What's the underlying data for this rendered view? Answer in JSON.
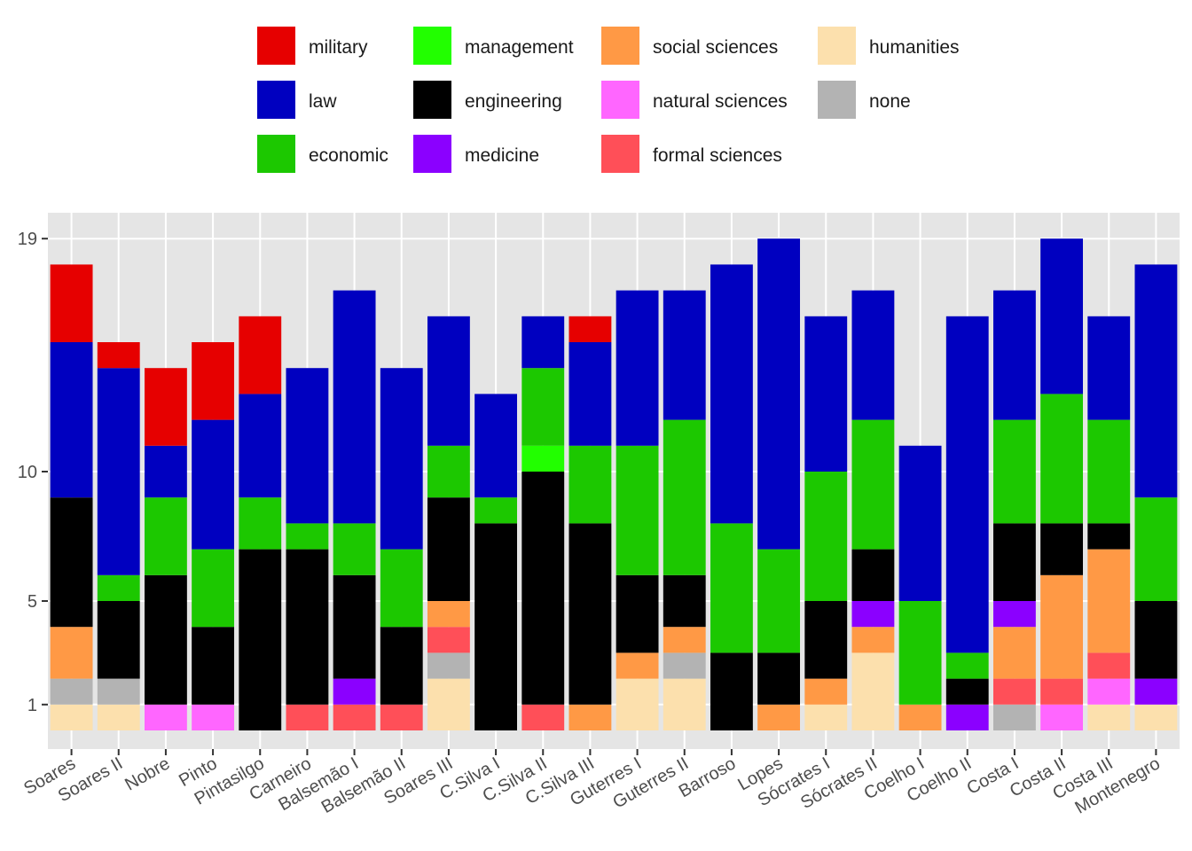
{
  "chart_data": {
    "type": "bar",
    "stacked": true,
    "categories": [
      "Soares",
      "Soares II",
      "Nobre",
      "Pinto",
      "Pintasilgo",
      "Carneiro",
      "Balsemão I",
      "Balsemão II",
      "Soares III",
      "C.Silva I",
      "C.Silva II",
      "C.Silva III",
      "Guterres I",
      "Guterres II",
      "Barroso",
      "Lopes",
      "Sócrates I",
      "Sócrates II",
      "Coelho I",
      "Coelho II",
      "Costa I",
      "Costa II",
      "Costa III",
      "Montenegro"
    ],
    "yticks": [
      1,
      5,
      10,
      19
    ],
    "ylim": [
      -0.7,
      20
    ],
    "grid": true,
    "legend_position": "top",
    "series": [
      {
        "name": "humanities",
        "color": "#FCE0AD",
        "values": [
          1,
          1,
          0,
          0,
          0,
          0,
          0,
          0,
          2,
          0,
          0,
          0,
          2,
          2,
          0,
          0,
          1,
          3,
          0,
          0,
          0,
          0,
          1,
          1
        ]
      },
      {
        "name": "none",
        "color": "#B3B3B3",
        "values": [
          1,
          1,
          0,
          0,
          0,
          0,
          0,
          0,
          1,
          0,
          0,
          0,
          0,
          1,
          0,
          0,
          0,
          0,
          0,
          0,
          1,
          0,
          0,
          0
        ]
      },
      {
        "name": "natural sciences",
        "color": "#FF66FF",
        "values": [
          0,
          0,
          1,
          1,
          0,
          0,
          0,
          0,
          0,
          0,
          0,
          0,
          0,
          0,
          0,
          0,
          0,
          0,
          0,
          0,
          0,
          1,
          1,
          0
        ]
      },
      {
        "name": "formal sciences",
        "color": "#FF4F58",
        "values": [
          0,
          0,
          0,
          0,
          0,
          1,
          1,
          1,
          1,
          0,
          1,
          0,
          0,
          0,
          0,
          0,
          0,
          0,
          0,
          0,
          1,
          1,
          1,
          0
        ]
      },
      {
        "name": "social sciences",
        "color": "#FF9945",
        "values": [
          2,
          0,
          0,
          0,
          0,
          0,
          0,
          0,
          1,
          0,
          0,
          1,
          1,
          1,
          0,
          1,
          1,
          1,
          1,
          0,
          2,
          4,
          4,
          0
        ]
      },
      {
        "name": "medicine",
        "color": "#8B00FF",
        "values": [
          0,
          0,
          0,
          0,
          0,
          0,
          1,
          0,
          0,
          0,
          0,
          0,
          0,
          0,
          0,
          0,
          0,
          1,
          0,
          1,
          1,
          0,
          0,
          1
        ]
      },
      {
        "name": "engineering",
        "color": "#000000",
        "values": [
          5,
          3,
          5,
          3,
          7,
          6,
          4,
          3,
          4,
          8,
          9,
          7,
          3,
          2,
          3,
          2,
          3,
          2,
          0,
          1,
          3,
          2,
          1,
          3
        ]
      },
      {
        "name": "management",
        "color": "#22FF00",
        "values": [
          0,
          0,
          0,
          0,
          0,
          0,
          0,
          0,
          0,
          0,
          1,
          0,
          0,
          0,
          0,
          0,
          0,
          0,
          0,
          0,
          0,
          0,
          0,
          0
        ]
      },
      {
        "name": "economic",
        "color": "#1CC800",
        "values": [
          0,
          1,
          3,
          3,
          2,
          1,
          2,
          3,
          2,
          1,
          3,
          3,
          5,
          6,
          5,
          4,
          5,
          5,
          4,
          1,
          4,
          5,
          4,
          4
        ]
      },
      {
        "name": "law",
        "color": "#0000C0",
        "values": [
          6,
          8,
          2,
          5,
          4,
          6,
          9,
          7,
          5,
          4,
          2,
          4,
          6,
          5,
          10,
          12,
          6,
          5,
          6,
          13,
          5,
          6,
          4,
          9
        ]
      },
      {
        "name": "military",
        "color": "#E60000",
        "values": [
          3,
          1,
          3,
          3,
          3,
          0,
          0,
          0,
          0,
          0,
          0,
          1,
          0,
          0,
          0,
          0,
          0,
          0,
          0,
          0,
          0,
          0,
          0,
          0
        ]
      }
    ],
    "legend": [
      {
        "name": "military",
        "color": "#E60000"
      },
      {
        "name": "law",
        "color": "#0000C0"
      },
      {
        "name": "economic",
        "color": "#1CC800"
      },
      {
        "name": "management",
        "color": "#22FF00"
      },
      {
        "name": "engineering",
        "color": "#000000"
      },
      {
        "name": "medicine",
        "color": "#8B00FF"
      },
      {
        "name": "social sciences",
        "color": "#FF9945"
      },
      {
        "name": "natural sciences",
        "color": "#FF66FF"
      },
      {
        "name": "formal sciences",
        "color": "#FF4F58"
      },
      {
        "name": "humanities",
        "color": "#FCE0AD"
      },
      {
        "name": "none",
        "color": "#B3B3B3"
      }
    ]
  },
  "colors": {
    "panel": "#E5E5E5",
    "grid": "#FFFFFF",
    "tick": "#333333"
  }
}
